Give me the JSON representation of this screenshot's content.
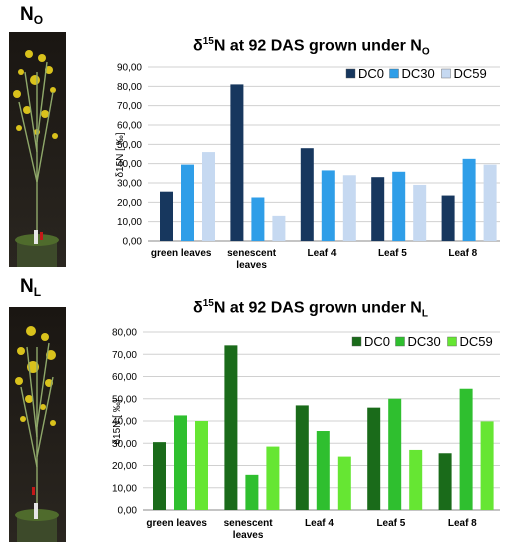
{
  "panels": [
    {
      "label_main": "N",
      "label_sub": "O",
      "title_pre": "δ",
      "title_sup": "15",
      "title_mid": "N at 92 DAS grown under N",
      "title_sub": "O"
    },
    {
      "label_main": "N",
      "label_sub": "L",
      "title_pre": "δ",
      "title_sup": "15",
      "title_mid": "N at 92 DAS grown under N",
      "title_sub": "L"
    }
  ],
  "chart_data": [
    {
      "type": "bar",
      "title": "δ15N at 92 DAS grown under NO",
      "ylabel": "δ15N [ ‰]",
      "ylim": [
        0,
        90
      ],
      "ytick_step": 10,
      "ytick_labels": [
        "0,00",
        "10,00",
        "20,00",
        "30,00",
        "40,00",
        "50,00",
        "60,00",
        "70,00",
        "80,00",
        "90,00"
      ],
      "grid": true,
      "legend_position": "top-right",
      "categories": [
        [
          "green leaves"
        ],
        [
          "senescent",
          "leaves"
        ],
        [
          "Leaf 4"
        ],
        [
          "Leaf 5"
        ],
        [
          "Leaf 8"
        ]
      ],
      "series": [
        {
          "name": "DC0",
          "color": "#17375e",
          "values": [
            25.5,
            81.0,
            48.0,
            33.0,
            23.5
          ]
        },
        {
          "name": "DC30",
          "color": "#2f9ee8",
          "values": [
            39.5,
            22.5,
            36.5,
            35.8,
            42.5
          ]
        },
        {
          "name": "DC59",
          "color": "#c6d9f1",
          "values": [
            46.0,
            13.0,
            34.0,
            29.0,
            39.5
          ]
        }
      ]
    },
    {
      "type": "bar",
      "title": "δ15N at 92 DAS grown under NL",
      "ylabel": "δ15N [ ‰]",
      "ylim": [
        0,
        80
      ],
      "ytick_step": 10,
      "ytick_labels": [
        "0,00",
        "10,00",
        "20,00",
        "30,00",
        "40,00",
        "50,00",
        "60,00",
        "70,00",
        "80,00"
      ],
      "grid": true,
      "legend_position": "top-right",
      "categories": [
        [
          "green leaves"
        ],
        [
          "senescent",
          "leaves"
        ],
        [
          "Leaf 4"
        ],
        [
          "Leaf 5"
        ],
        [
          "Leaf 8"
        ]
      ],
      "series": [
        {
          "name": "DC0",
          "color": "#1a6b1a",
          "values": [
            30.5,
            74.0,
            47.0,
            46.0,
            25.5
          ]
        },
        {
          "name": "DC30",
          "color": "#2fbf2f",
          "values": [
            42.5,
            15.8,
            35.5,
            50.0,
            54.5
          ]
        },
        {
          "name": "DC59",
          "color": "#66e633",
          "values": [
            40.0,
            28.5,
            24.0,
            27.0,
            39.8
          ]
        }
      ]
    }
  ]
}
